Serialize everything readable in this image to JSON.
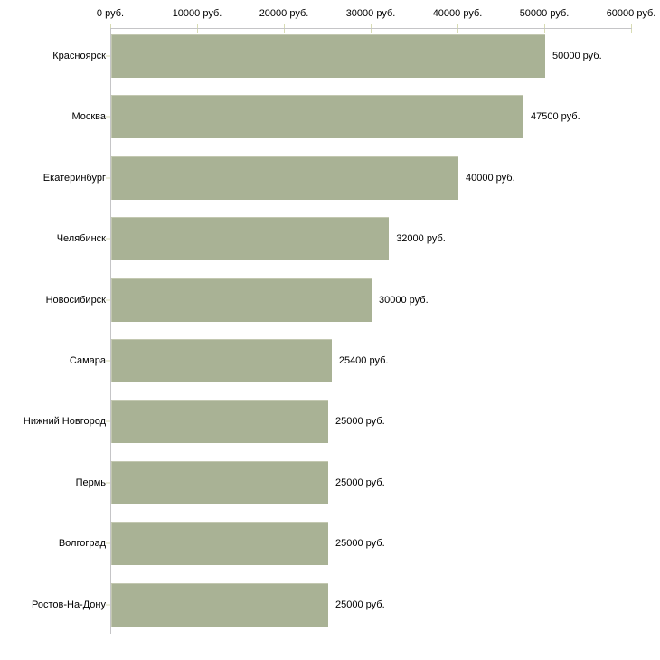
{
  "chart_data": {
    "type": "bar",
    "orientation": "horizontal",
    "title": "",
    "xlabel": "",
    "ylabel": "",
    "unit": "руб.",
    "grid": false,
    "legend": false,
    "categories": [
      "Красноярск",
      "Москва",
      "Екатеринбург",
      "Челябинск",
      "Новосибирск",
      "Самара",
      "Нижний Новгород",
      "Пермь",
      "Волгоград",
      "Ростов-На-Дону"
    ],
    "values": [
      50000,
      47500,
      40000,
      32000,
      30000,
      25400,
      25000,
      25000,
      25000,
      25000
    ],
    "value_labels": [
      "50000 руб.",
      "47500 руб.",
      "40000 руб.",
      "32000 руб.",
      "30000 руб.",
      "25400 руб.",
      "25000 руб.",
      "25000 руб.",
      "25000 руб.",
      "25000 руб."
    ],
    "x_axis": {
      "position": "top",
      "min": 0,
      "max": 60000,
      "ticks": [
        0,
        10000,
        20000,
        30000,
        40000,
        50000,
        60000
      ],
      "tick_labels": [
        "0 руб.",
        "10000 руб.",
        "20000 руб.",
        "30000 руб.",
        "40000 руб.",
        "50000 руб.",
        "60000 руб."
      ]
    },
    "colors": {
      "bar": "#a9b295",
      "bar_highlight": "#c3c8b1",
      "axis_line": "#c5c5c7",
      "tick_mark": "#d8dcb4",
      "text": "#000000",
      "background": "#ffffff"
    }
  }
}
